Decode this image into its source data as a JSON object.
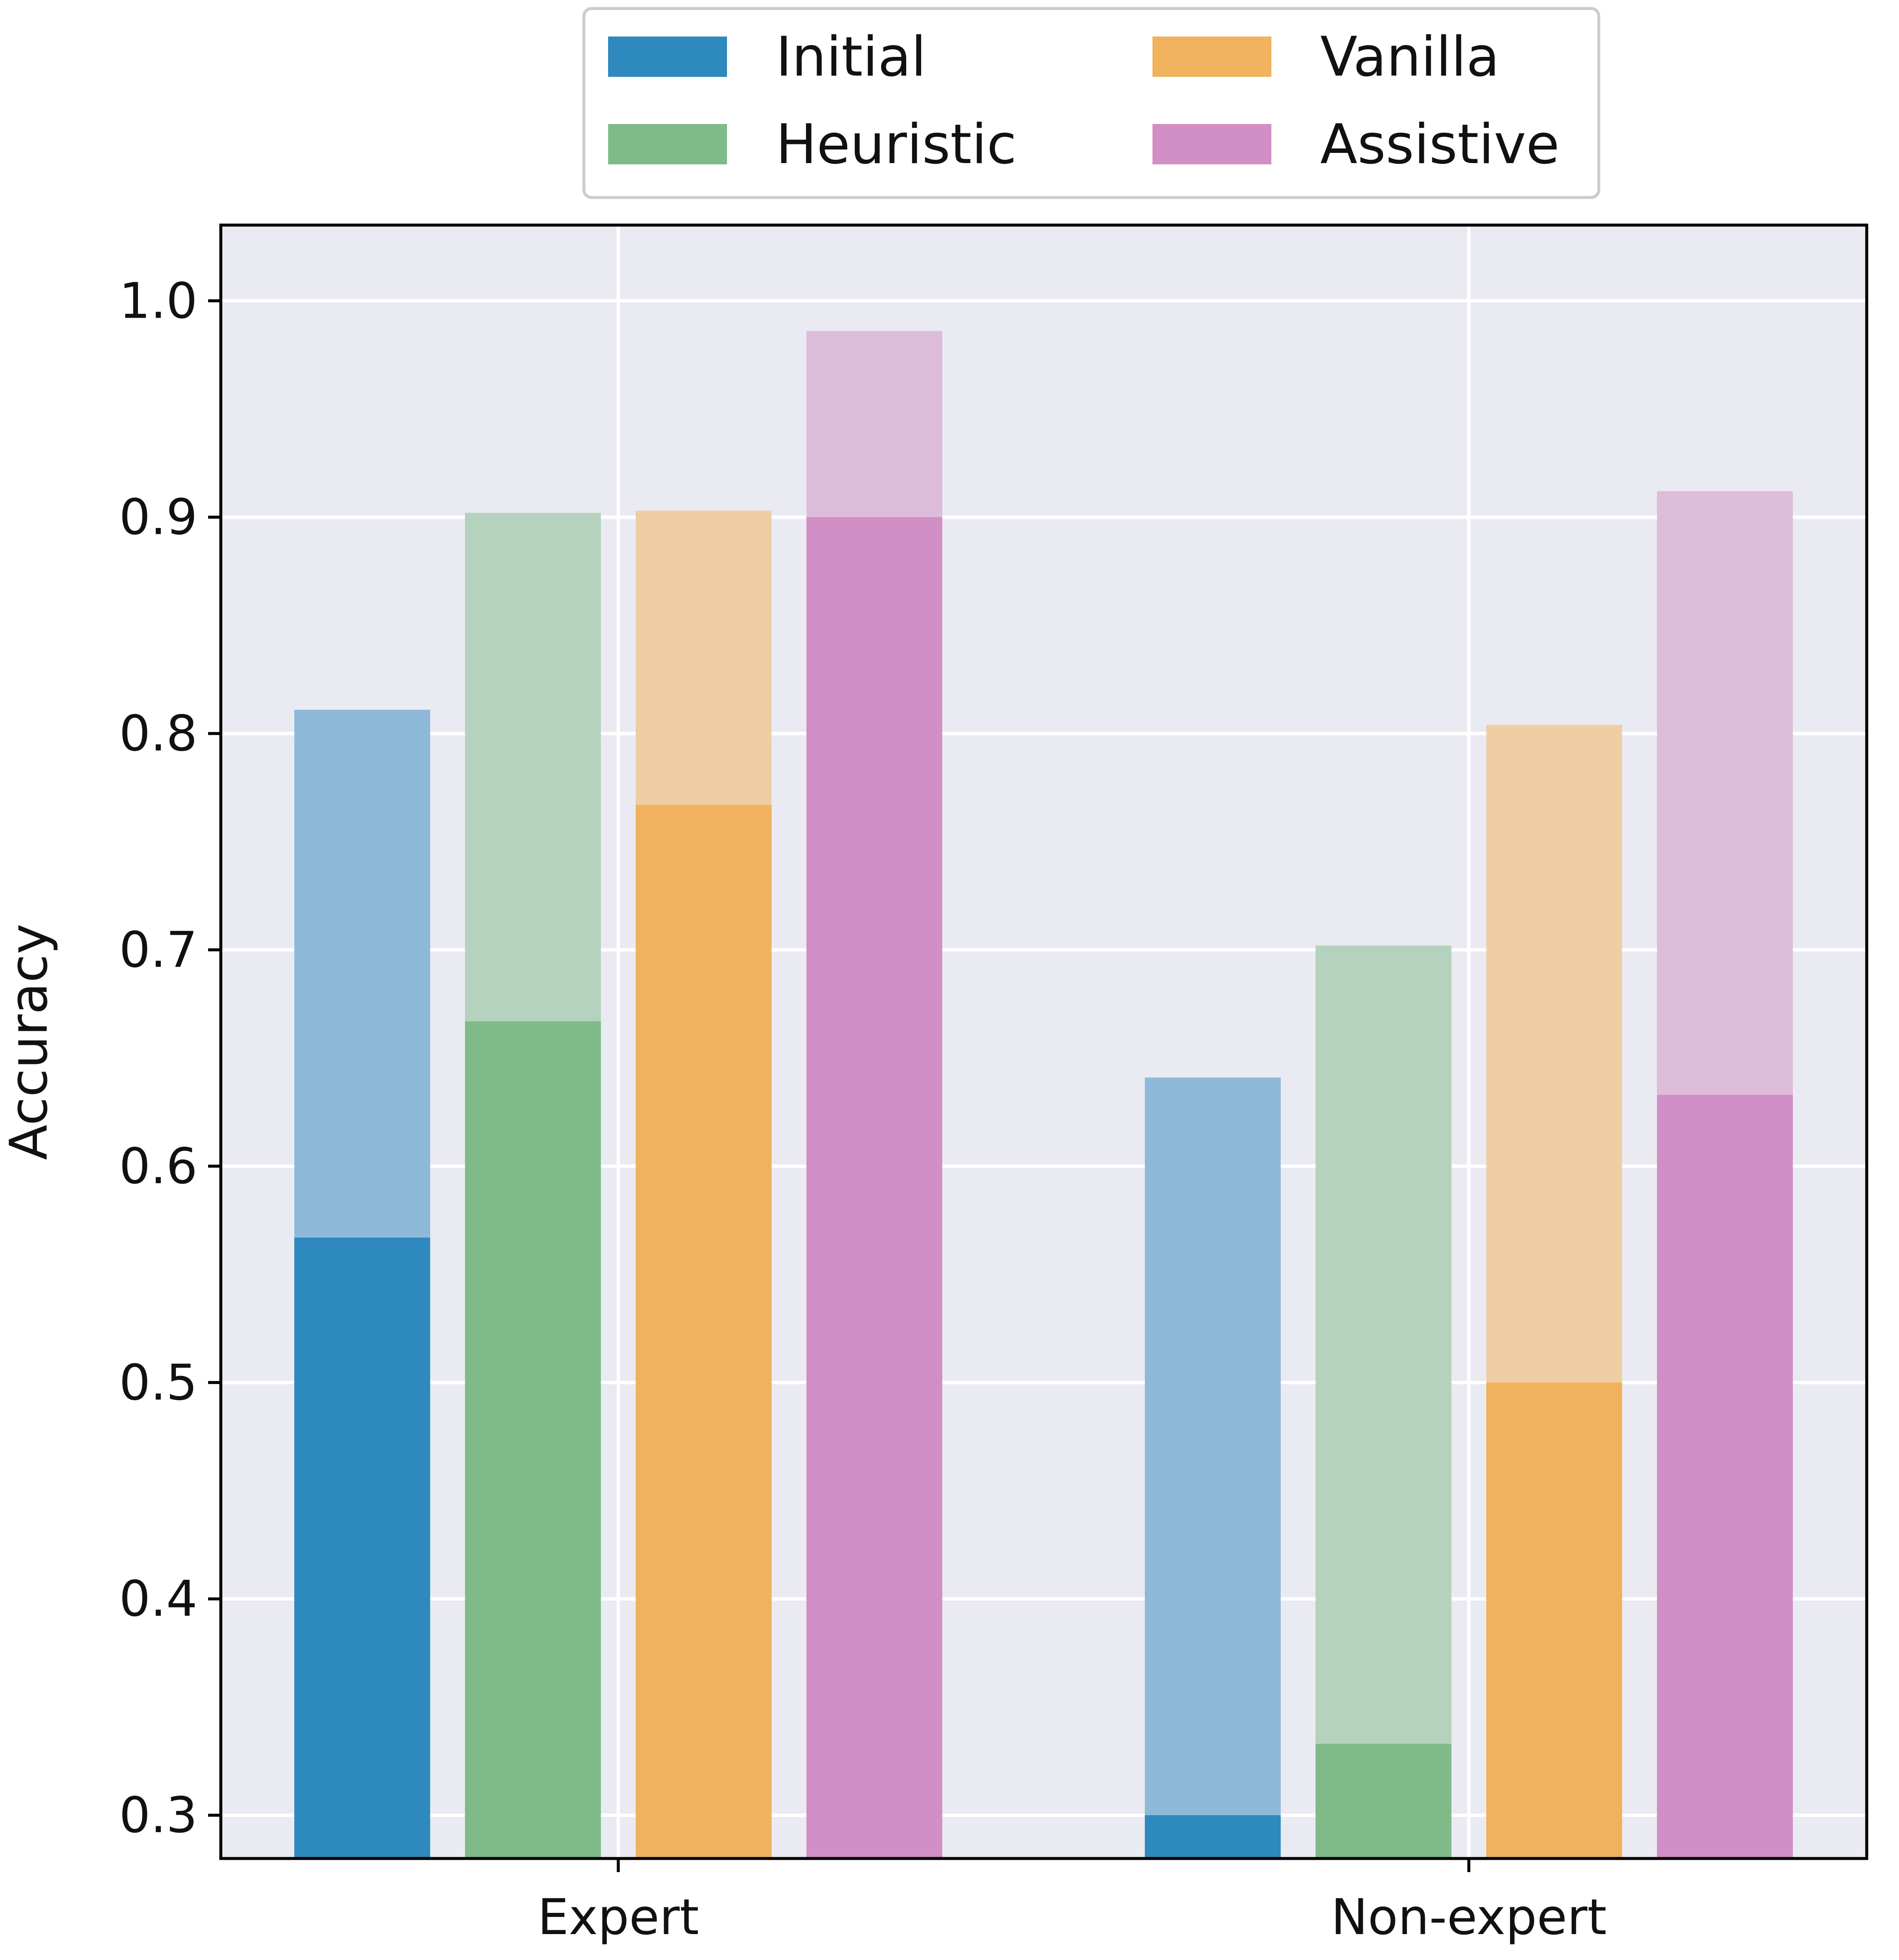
{
  "chart_data": {
    "type": "bar",
    "title": "",
    "xlabel": "",
    "ylabel": "Accuracy",
    "ylim": [
      0.28,
      1.035
    ],
    "yticks": [
      "0.3",
      "0.4",
      "0.5",
      "0.6",
      "0.7",
      "0.8",
      "0.9",
      "1.0"
    ],
    "categories": [
      "Expert",
      "Non-expert"
    ],
    "series": [
      {
        "name": "Initial",
        "color": "#2E89BE",
        "light_color": "#8FB9D9",
        "values": [
          0.567,
          0.3
        ],
        "upper_values": [
          0.811,
          0.641
        ]
      },
      {
        "name": "Heuristic",
        "color": "#7FBB88",
        "light_color": "#B4D2BD",
        "values": [
          0.667,
          0.333
        ],
        "upper_values": [
          0.902,
          0.702
        ]
      },
      {
        "name": "Vanilla",
        "color": "#F0B25C",
        "light_color": "#EFCEA3",
        "values": [
          0.767,
          0.5
        ],
        "upper_values": [
          0.903,
          0.804
        ]
      },
      {
        "name": "Assistive",
        "color": "#D28FC5",
        "light_color": "#DDBCDA",
        "values": [
          0.9,
          0.633
        ],
        "upper_values": [
          0.986,
          0.912
        ]
      }
    ],
    "legend": {
      "position": "top-center",
      "columns": 2
    },
    "grid": true,
    "background": "#EAEAF2"
  }
}
